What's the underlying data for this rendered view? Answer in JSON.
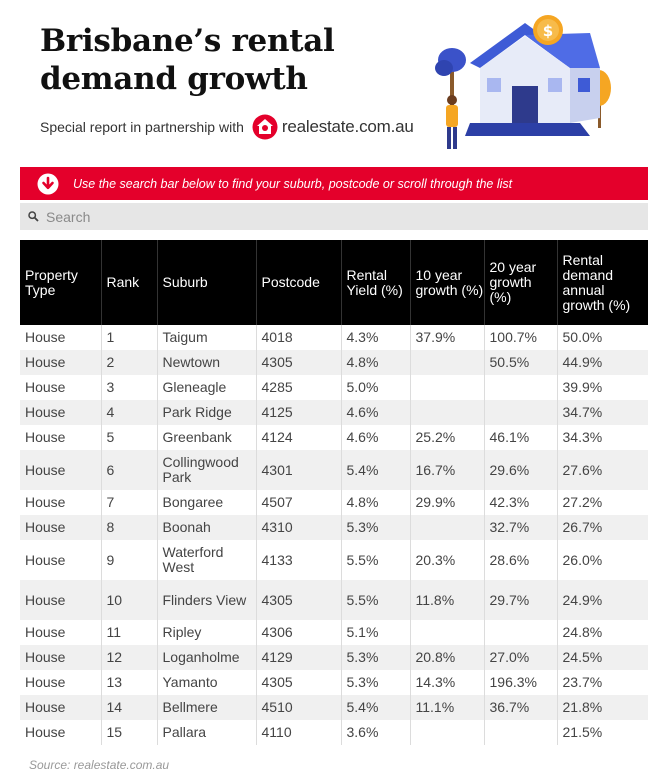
{
  "header": {
    "title": "Brisbane’s rental demand growth",
    "partner_text": "Special report in partnership with",
    "partner_brand": "realestate.com.au"
  },
  "banner": {
    "text": "Use the search bar below to find your suburb, postcode or scroll through the list"
  },
  "search": {
    "placeholder": "Search",
    "value": ""
  },
  "table": {
    "columns": [
      "Property Type",
      "Rank",
      "Suburb",
      "Postcode",
      "Rental Yield (%)",
      "10 year growth (%)",
      "20 year growth (%)",
      "Rental demand annual growth (%)"
    ],
    "rows": [
      [
        "House",
        "1",
        "Taigum",
        "4018",
        "4.3%",
        "37.9%",
        "100.7%",
        "50.0%"
      ],
      [
        "House",
        "2",
        "Newtown",
        "4305",
        "4.8%",
        "",
        "50.5%",
        "44.9%"
      ],
      [
        "House",
        "3",
        "Gleneagle",
        "4285",
        "5.0%",
        "",
        "",
        "39.9%"
      ],
      [
        "House",
        "4",
        "Park Ridge",
        "4125",
        "4.6%",
        "",
        "",
        "34.7%"
      ],
      [
        "House",
        "5",
        "Greenbank",
        "4124",
        "4.6%",
        "25.2%",
        "46.1%",
        "34.3%"
      ],
      [
        "House",
        "6",
        "Collingwood Park",
        "4301",
        "5.4%",
        "16.7%",
        "29.6%",
        "27.6%"
      ],
      [
        "House",
        "7",
        "Bongaree",
        "4507",
        "4.8%",
        "29.9%",
        "42.3%",
        "27.2%"
      ],
      [
        "House",
        "8",
        "Boonah",
        "4310",
        "5.3%",
        "",
        "32.7%",
        "26.7%"
      ],
      [
        "House",
        "9",
        "Waterford West",
        "4133",
        "5.5%",
        "20.3%",
        "28.6%",
        "26.0%"
      ],
      [
        "House",
        "10",
        "Flinders View",
        "4305",
        "5.5%",
        "11.8%",
        "29.7%",
        "24.9%"
      ],
      [
        "House",
        "11",
        "Ripley",
        "4306",
        "5.1%",
        "",
        "",
        "24.8%"
      ],
      [
        "House",
        "12",
        "Loganholme",
        "4129",
        "5.3%",
        "20.8%",
        "27.0%",
        "24.5%"
      ],
      [
        "House",
        "13",
        "Yamanto",
        "4305",
        "5.3%",
        "14.3%",
        "196.3%",
        "23.7%"
      ],
      [
        "House",
        "14",
        "Bellmere",
        "4510",
        "5.4%",
        "11.1%",
        "36.7%",
        "21.8%"
      ],
      [
        "House",
        "15",
        "Pallara",
        "4110",
        "3.6%",
        "",
        "",
        "21.5%"
      ]
    ]
  },
  "source": "Source: realestate.com.au",
  "colors": {
    "banner": "#e4002b",
    "header_bg": "#000000",
    "row_alt": "#f0f0f0"
  }
}
